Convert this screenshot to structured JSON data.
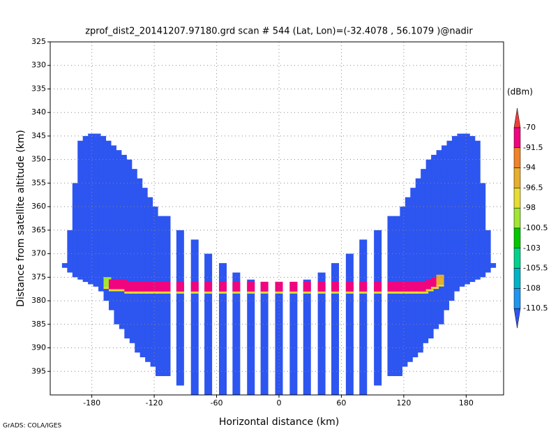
{
  "chart_data": {
    "type": "swath",
    "title": "zprof_dist2_20141207.97180.grd  scan # 544  (Lat, Lon)=(-32.4078 , 56.1079 )@nadir",
    "x_label": "Horizontal distance (km)",
    "y_label": "Distance from satellite altitude (km)",
    "credit": "GrADS: COLA/IGES",
    "xlim": [
      -220,
      216
    ],
    "xticks": [
      -180,
      -120,
      -60,
      0,
      60,
      120,
      180
    ],
    "ylim": [
      325,
      400
    ],
    "y_inverted": true,
    "yticks": [
      325,
      330,
      335,
      340,
      345,
      350,
      355,
      360,
      365,
      370,
      375,
      380,
      385,
      390,
      395
    ],
    "grid": true,
    "legend_title": "(dBm)",
    "levels": [
      -70,
      -91.5,
      -94,
      -96.5,
      -98,
      -100.5,
      -103,
      -105.5,
      -108,
      -110.5
    ],
    "colors": [
      "#f03c3c",
      "#f0057f",
      "#f08228",
      "#e6af2d",
      "#e6dc32",
      "#a0e632",
      "#00c800",
      "#00d28c",
      "#00b4c8",
      "#1e96f0",
      "#2d55f0"
    ],
    "x": [
      -205,
      -200,
      -195,
      -190,
      -185,
      -180,
      -175,
      -170,
      -165,
      -160,
      -155,
      -150,
      -145,
      -140,
      -135,
      -130,
      -125,
      -120,
      -115,
      -108,
      -95,
      -81,
      -68,
      -54,
      -41,
      -27,
      -14,
      0,
      14,
      27,
      41,
      54,
      68,
      81,
      95,
      108,
      115,
      120,
      125,
      130,
      135,
      140,
      145,
      150,
      155,
      160,
      165,
      170,
      175,
      180,
      185,
      190,
      195,
      200,
      205
    ],
    "y_top": [
      372,
      365,
      355,
      346,
      345,
      344.5,
      344.5,
      345,
      346,
      347,
      348,
      349,
      350,
      352,
      354,
      356,
      358,
      360,
      362,
      362,
      365,
      367,
      370,
      372,
      374,
      375.5,
      376,
      376,
      376,
      375.5,
      374,
      372,
      370,
      367,
      365,
      362,
      362,
      360,
      358,
      356,
      354,
      352,
      350,
      349,
      348,
      347,
      346,
      345,
      344.5,
      344.5,
      345,
      346,
      355,
      365,
      372
    ],
    "y_bottom": [
      373,
      374,
      375,
      375.5,
      376,
      376.5,
      377,
      378,
      380,
      382,
      385,
      386,
      388,
      389,
      391,
      392,
      393,
      394,
      396,
      396,
      398,
      400,
      400,
      400,
      400,
      400,
      400,
      400,
      400,
      400,
      400,
      400,
      400,
      400,
      398,
      396,
      396,
      394,
      393,
      392,
      391,
      389,
      388,
      386,
      385,
      382,
      380,
      378,
      377,
      376.5,
      376,
      375.5,
      375,
      374,
      373
    ],
    "surface_y": [
      null,
      null,
      null,
      null,
      null,
      null,
      null,
      null,
      376,
      376.5,
      376.5,
      376.5,
      377,
      377,
      377,
      377,
      377,
      377,
      377,
      377,
      377,
      377,
      377,
      377,
      377,
      377,
      377,
      377,
      377,
      377,
      377,
      377,
      377,
      377,
      377,
      377,
      377,
      377,
      377,
      377,
      377,
      377,
      376.5,
      376,
      375.5,
      null,
      null,
      null,
      null,
      null,
      null,
      null,
      null,
      null,
      null
    ],
    "surface_values": [
      null,
      null,
      null,
      null,
      null,
      null,
      null,
      null,
      -100,
      -85,
      -82,
      -80,
      -80,
      -78,
      -80,
      -82,
      -85,
      -85,
      -88,
      -85,
      -85,
      -85,
      -85,
      -85,
      -85,
      -85,
      -85,
      -85,
      -85,
      -85,
      -85,
      -85,
      -85,
      -85,
      -85,
      -85,
      -82,
      -80,
      -80,
      -80,
      -80,
      -80,
      -82,
      -85,
      -95,
      null,
      null,
      null,
      null,
      null,
      null,
      null,
      null,
      null,
      null
    ]
  }
}
